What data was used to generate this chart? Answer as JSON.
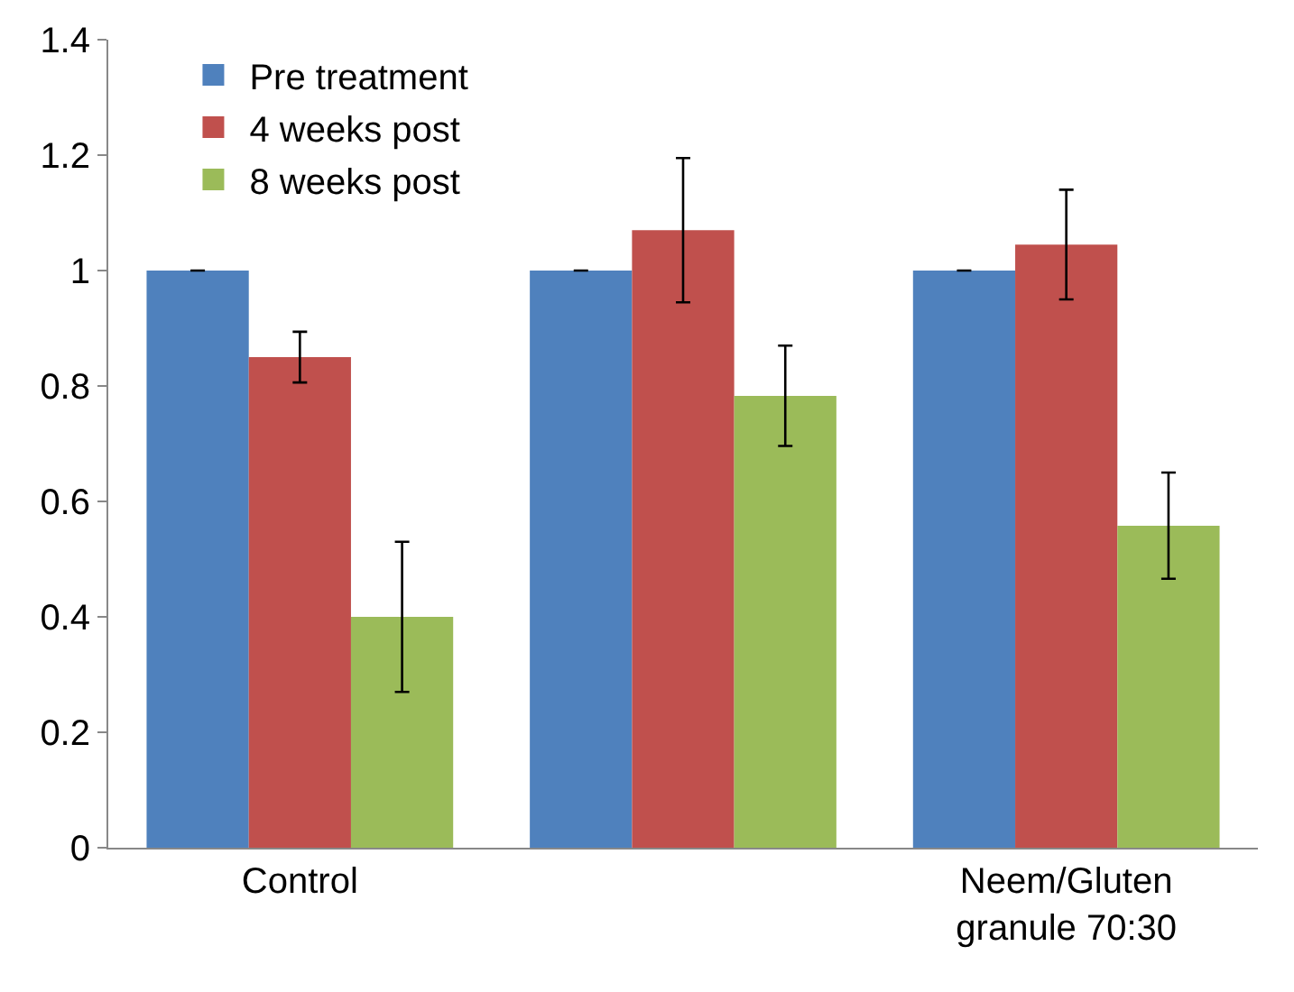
{
  "chart_data": {
    "type": "bar",
    "categories": [
      "Control",
      null,
      "Neem/Gluten granule 70:30"
    ],
    "series": [
      {
        "name": "Pre treatment",
        "color": "#4f81bd",
        "values": [
          1,
          1,
          1
        ],
        "errors": [
          0,
          0,
          0
        ]
      },
      {
        "name": "4 weeks post",
        "color": "#c0504d",
        "values": [
          0.85,
          1.07,
          1.045
        ],
        "errors": [
          0.044,
          0.125,
          0.095
        ]
      },
      {
        "name": "8 weeks post",
        "color": "#9bbb59",
        "values": [
          0.4,
          0.783,
          0.558
        ],
        "errors": [
          0.13,
          0.087,
          0.092
        ]
      }
    ],
    "ylim": [
      0,
      1.4
    ],
    "yticks": [
      0,
      0.2,
      0.4,
      0.6,
      0.8,
      1,
      1.2,
      1.4
    ],
    "legend": "top left"
  }
}
